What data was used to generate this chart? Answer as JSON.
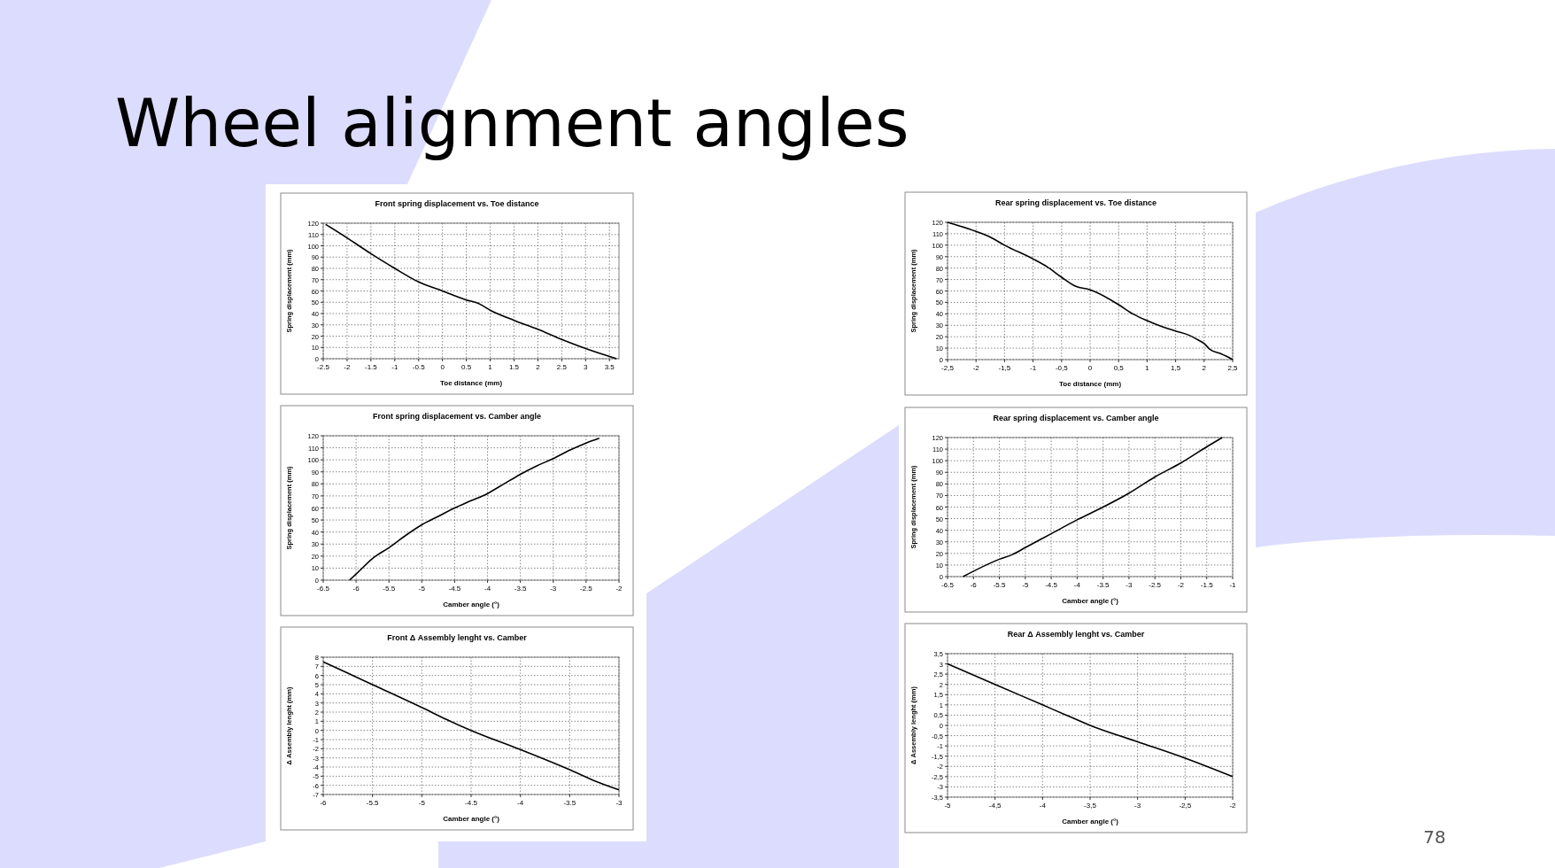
{
  "chart_data": [
    {
      "type": "line",
      "title": "Front spring displacement vs. Toe distance",
      "xlabel": "Toe distance (mm)",
      "ylabel": "Spring displacement (mm)",
      "annotations": [
        "Wheel alignment angles"
      ],
      "grid": true,
      "marker": "none",
      "line_style": "solid",
      "xlim": [
        -2.5,
        3.7
      ],
      "xticks": [
        -2.5,
        -2,
        -1.5,
        -1,
        -0.5,
        0,
        0.5,
        1,
        1.5,
        2,
        2.5,
        3,
        3.5
      ],
      "ylim": [
        0,
        120
      ],
      "yticks": [
        0,
        10,
        20,
        30,
        40,
        50,
        60,
        70,
        80,
        90,
        100,
        110,
        120
      ],
      "series": [
        {
          "color": "#000000",
          "x": [
            -2.45,
            -2,
            -1.75,
            -1.5,
            -1,
            -0.5,
            0,
            0.5,
            0.75,
            1,
            1.5,
            2,
            2.5,
            3,
            3.65
          ],
          "values": [
            119,
            107,
            100,
            93,
            80,
            68,
            60,
            52,
            49,
            43,
            34,
            26,
            17,
            9,
            0
          ]
        }
      ]
    },
    {
      "type": "line",
      "title": "Front spring displacement vs. Camber angle",
      "xlabel": "Camber angle (°)",
      "ylabel": "Spring displacement (mm)",
      "grid": true,
      "marker": "none",
      "line_style": "solid",
      "xlim": [
        -6.5,
        -2
      ],
      "xticks": [
        -6.5,
        -6,
        -5.5,
        -5,
        -4.5,
        -4,
        -3.5,
        -3,
        -2.5,
        -2
      ],
      "ylim": [
        0,
        120
      ],
      "yticks": [
        0,
        10,
        20,
        30,
        40,
        50,
        60,
        70,
        80,
        90,
        100,
        110,
        120
      ],
      "series": [
        {
          "color": "#000000",
          "x": [
            -6.1,
            -6,
            -5.75,
            -5.5,
            -5.25,
            -5,
            -4.75,
            -4.5,
            -4.25,
            -4,
            -3.75,
            -3.5,
            -3.25,
            -3,
            -2.75,
            -2.5,
            -2.3
          ],
          "values": [
            0,
            5,
            18,
            27,
            37,
            46,
            53,
            60,
            66,
            72,
            80,
            88,
            95,
            101,
            108,
            114,
            118
          ]
        }
      ]
    },
    {
      "type": "line",
      "title": "Front Δ Assembly lenght vs. Camber",
      "xlabel": "Camber angle (°)",
      "ylabel": "Δ Assembly lenght (mm)",
      "grid": true,
      "marker": "none",
      "line_style": "solid",
      "xlim": [
        -6,
        -3
      ],
      "xticks": [
        -6,
        -5.5,
        -5,
        -4.5,
        -4,
        -3.5,
        -3
      ],
      "ylim": [
        -7,
        8
      ],
      "yticks": [
        -7,
        -6,
        -5,
        -4,
        -3,
        -2,
        -1,
        0,
        1,
        2,
        3,
        4,
        5,
        6,
        7,
        8
      ],
      "series": [
        {
          "color": "#000000",
          "x": [
            -6,
            -5.5,
            -5,
            -4.75,
            -4.5,
            -4,
            -3.5,
            -3.25,
            -3
          ],
          "values": [
            7.5,
            5,
            2.5,
            1.2,
            0,
            -2.1,
            -4.3,
            -5.5,
            -6.5
          ]
        }
      ]
    },
    {
      "type": "line",
      "title": "Rear spring displacement vs. Toe distance",
      "xlabel": "Toe distance (mm)",
      "ylabel": "Spring displacement (mm)",
      "grid": true,
      "marker": "none",
      "line_style": "solid",
      "xlim": [
        -2.5,
        2.5
      ],
      "xticks": [
        {
          "value": -2.5,
          "label": "-2,5"
        },
        -2,
        {
          "value": -1.5,
          "label": "-1,5"
        },
        -1,
        {
          "value": -0.5,
          "label": "-0,5"
        },
        0,
        {
          "value": 0.5,
          "label": "0,5"
        },
        1,
        {
          "value": 1.5,
          "label": "1,5"
        },
        2,
        {
          "value": 2.5,
          "label": "2,5"
        }
      ],
      "ylim": [
        0,
        120
      ],
      "yticks": [
        0,
        10,
        20,
        30,
        40,
        50,
        60,
        70,
        80,
        90,
        100,
        110,
        120
      ],
      "series": [
        {
          "color": "#000000",
          "x": [
            -2.5,
            -2,
            -1.75,
            -1.5,
            -1,
            -0.75,
            -0.5,
            -0.25,
            0,
            0.1,
            0.5,
            0.75,
            1,
            1.25,
            1.5,
            1.75,
            1.9,
            2,
            2.1,
            2.3,
            2.5
          ],
          "values": [
            120,
            112,
            107,
            100,
            88,
            81,
            72,
            64,
            61,
            59,
            48,
            40,
            34,
            29,
            25,
            21,
            17,
            14,
            9,
            5,
            0
          ]
        }
      ]
    },
    {
      "type": "line",
      "title": "Rear spring displacement vs. Camber angle",
      "xlabel": "Camber angle (°)",
      "ylabel": "Spring displacement (mm)",
      "grid": true,
      "marker": "none",
      "line_style": "solid",
      "xlim": [
        -6.5,
        -1
      ],
      "xticks": [
        -6.5,
        -6,
        -5.5,
        -5,
        -4.5,
        -4,
        -3.5,
        -3,
        -2.5,
        -2,
        -1.5,
        -1
      ],
      "ylim": [
        0,
        120
      ],
      "yticks": [
        0,
        10,
        20,
        30,
        40,
        50,
        60,
        70,
        80,
        90,
        100,
        110,
        120
      ],
      "series": [
        {
          "color": "#000000",
          "x": [
            -6.2,
            -5.5,
            -5.25,
            -5,
            -4.5,
            -4,
            -3.5,
            -3,
            -2.5,
            -2,
            -1.5,
            -1.2
          ],
          "values": [
            0,
            15,
            19,
            25,
            37,
            49,
            60,
            72,
            86,
            98,
            112,
            120
          ]
        }
      ]
    },
    {
      "type": "line",
      "title": "Rear Δ Assembly lenght vs. Camber",
      "xlabel": "Camber angle (°)",
      "ylabel": "Δ Assembly lenght (mm)",
      "annotations": [
        "78"
      ],
      "grid": true,
      "marker": "none",
      "line_style": "solid",
      "xlim": [
        -5,
        -2
      ],
      "xticks": [
        -5,
        {
          "value": -4.5,
          "label": "-4,5"
        },
        -4,
        {
          "value": -3.5,
          "label": "-3,5"
        },
        -3,
        {
          "value": -2.5,
          "label": "-2,5"
        },
        -2
      ],
      "ylim": [
        -3.5,
        3.5
      ],
      "yticks": [
        {
          "value": -3.5,
          "label": "-3,5"
        },
        -3,
        {
          "value": -2.5,
          "label": "-2,5"
        },
        -2,
        {
          "value": -1.5,
          "label": "-1,5"
        },
        -1,
        {
          "value": -0.5,
          "label": "-0,5"
        },
        0,
        {
          "value": 0.5,
          "label": "0,5"
        },
        1,
        {
          "value": 1.5,
          "label": "1,5"
        },
        2,
        {
          "value": 2.5,
          "label": "2,5"
        },
        3,
        {
          "value": 3.5,
          "label": "3,5"
        }
      ],
      "series": [
        {
          "color": "#000000",
          "x": [
            -5,
            -4.5,
            -4,
            -3.75,
            -3.5,
            -3,
            -2.5,
            -2
          ],
          "values": [
            3,
            2,
            1,
            0.5,
            0,
            -0.8,
            -1.6,
            -2.5
          ]
        }
      ]
    }
  ]
}
